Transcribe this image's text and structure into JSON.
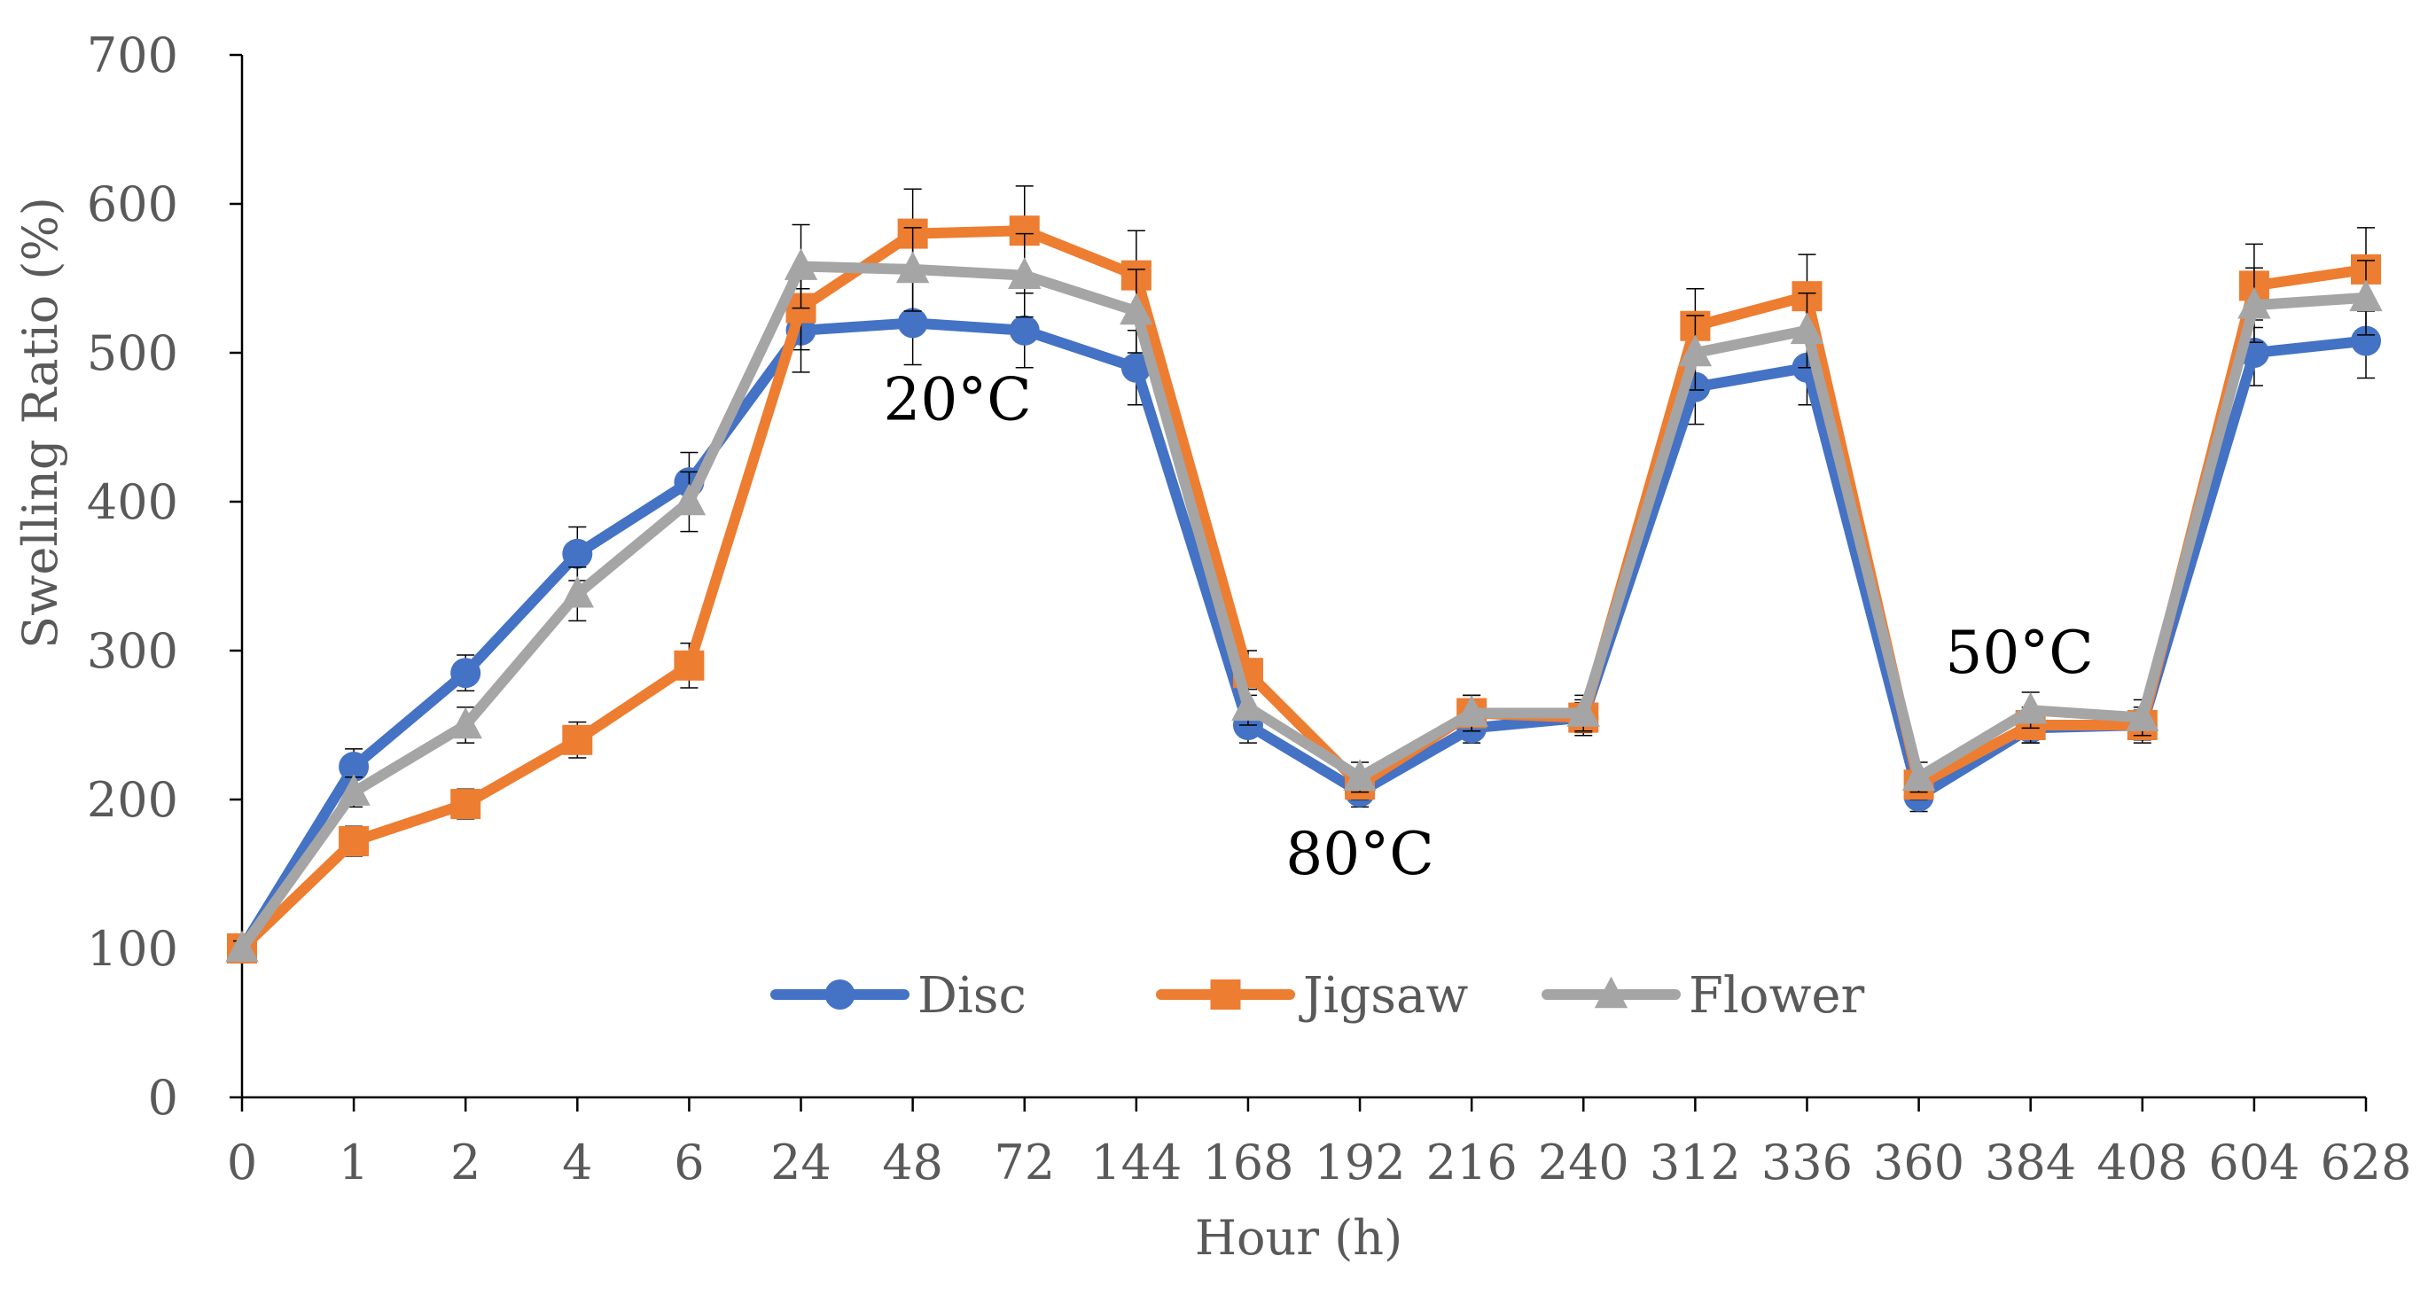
{
  "chart_data": {
    "type": "line",
    "title": "",
    "xlabel": "Hour (h)",
    "ylabel": "Swelling Ratio (%)",
    "ylim": [
      0,
      700
    ],
    "y_ticks": [
      0,
      100,
      200,
      300,
      400,
      500,
      600,
      700
    ],
    "categories": [
      "0",
      "1",
      "2",
      "4",
      "6",
      "24",
      "48",
      "72",
      "144",
      "168",
      "192",
      "216",
      "240",
      "312",
      "336",
      "360",
      "384",
      "408",
      "604",
      "628"
    ],
    "series": [
      {
        "name": "Disc",
        "color": "#4472C4",
        "marker": "circle",
        "values": [
          100,
          222,
          285,
          365,
          413,
          515,
          520,
          515,
          490,
          250,
          205,
          248,
          255,
          477,
          490,
          202,
          248,
          250,
          500,
          508
        ],
        "errors": [
          5,
          12,
          12,
          18,
          20,
          28,
          28,
          25,
          25,
          12,
          10,
          10,
          10,
          25,
          25,
          10,
          10,
          10,
          22,
          25
        ]
      },
      {
        "name": "Jigsaw",
        "color": "#ED7D31",
        "marker": "square",
        "values": [
          100,
          172,
          197,
          240,
          290,
          530,
          580,
          582,
          552,
          285,
          210,
          258,
          255,
          518,
          538,
          210,
          250,
          250,
          545,
          556
        ],
        "errors": [
          5,
          10,
          10,
          12,
          15,
          28,
          30,
          30,
          30,
          15,
          10,
          12,
          12,
          25,
          28,
          10,
          12,
          12,
          28,
          28
        ]
      },
      {
        "name": "Flower",
        "color": "#A5A5A5",
        "marker": "triangle",
        "values": [
          100,
          205,
          250,
          338,
          400,
          558,
          556,
          552,
          528,
          262,
          215,
          258,
          258,
          500,
          515,
          215,
          260,
          255,
          532,
          537
        ],
        "errors": [
          5,
          10,
          12,
          18,
          20,
          28,
          28,
          28,
          28,
          12,
          10,
          12,
          12,
          25,
          25,
          10,
          12,
          12,
          25,
          25
        ]
      }
    ],
    "annotations": [
      {
        "text": "20°C",
        "x_index": 6.4,
        "y": 455
      },
      {
        "text": "80°C",
        "x_index": 10.0,
        "y": 150
      },
      {
        "text": "50°C",
        "x_index": 15.9,
        "y": 285
      }
    ],
    "legend_position": "bottom-center",
    "grid": false
  }
}
